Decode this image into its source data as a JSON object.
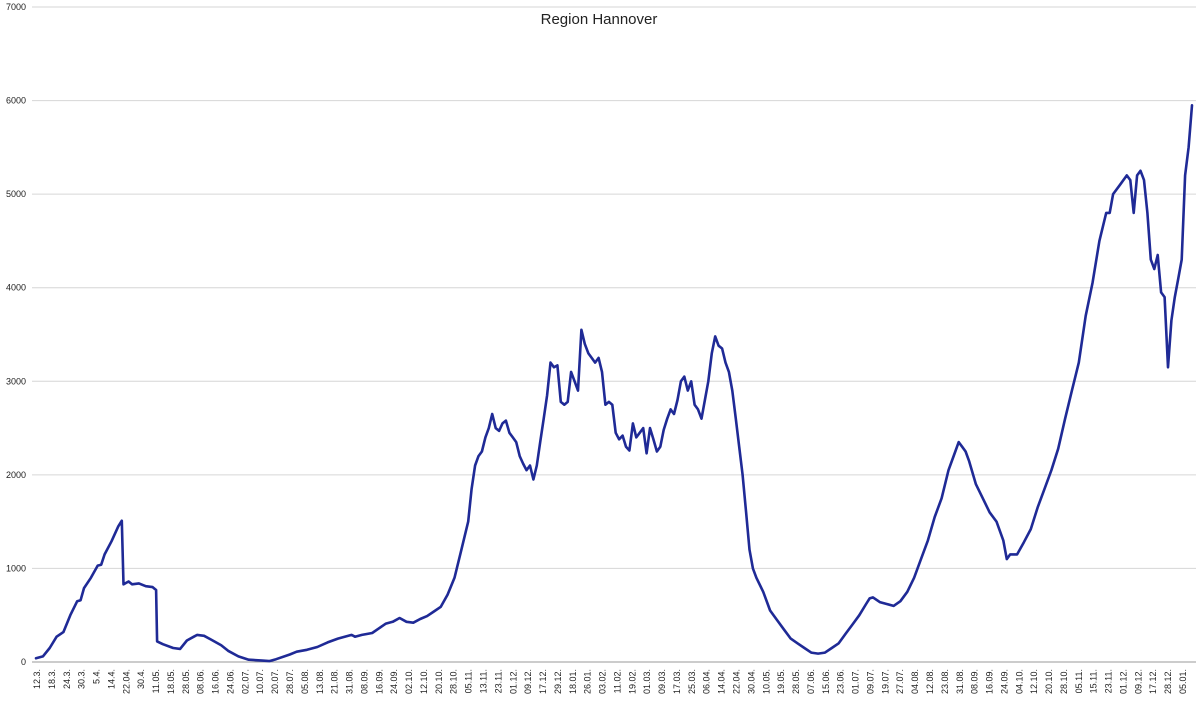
{
  "chart_data": {
    "type": "line",
    "title": "Region Hannover",
    "xlabel": "",
    "ylabel": "",
    "ylim": [
      0,
      7000
    ],
    "yticks": [
      0,
      1000,
      2000,
      3000,
      4000,
      5000,
      6000,
      7000
    ],
    "grid": true,
    "legend": "none",
    "xtick_labels": [
      "12.3.",
      "18.3.",
      "24.3.",
      "30.3.",
      "5.4.",
      "14.4.",
      "22.04.",
      "30.4.",
      "11.05.",
      "18.05.",
      "28.05.",
      "08.06.",
      "16.06.",
      "24.06.",
      "02.07.",
      "10.07.",
      "20.07.",
      "28.07.",
      "05.08.",
      "13.08.",
      "21.08.",
      "31.08.",
      "08.09.",
      "16.09.",
      "24.09.",
      "02.10.",
      "12.10.",
      "20.10.",
      "28.10.",
      "05.11.",
      "13.11.",
      "23.11.",
      "01.12.",
      "09.12.",
      "17.12.",
      "29.12.",
      "18.01.",
      "26.01.",
      "03.02.",
      "11.02.",
      "19.02.",
      "01.03.",
      "09.03.",
      "17.03.",
      "25.03.",
      "06.04.",
      "14.04.",
      "22.04.",
      "30.04.",
      "10.05.",
      "19.05.",
      "28.05.",
      "07.06.",
      "15.06.",
      "23.06.",
      "01.07.",
      "09.07.",
      "19.07.",
      "27.07.",
      "04.08.",
      "12.08.",
      "23.08.",
      "31.08.",
      "08.09.",
      "16.09.",
      "24.09.",
      "04.10.",
      "12.10.",
      "20.10.",
      "28.10.",
      "05.11.",
      "15.11.",
      "23.11.",
      "01.12.",
      "09.12.",
      "17.12.",
      "28.12.",
      "05.01."
    ],
    "series": [
      {
        "color": "#1f2a96",
        "points": [
          [
            0,
            40
          ],
          [
            2,
            60
          ],
          [
            4,
            150
          ],
          [
            6,
            270
          ],
          [
            8,
            320
          ],
          [
            10,
            500
          ],
          [
            12,
            650
          ],
          [
            13,
            660
          ],
          [
            14,
            790
          ],
          [
            16,
            900
          ],
          [
            18,
            1030
          ],
          [
            19,
            1040
          ],
          [
            20,
            1150
          ],
          [
            22,
            1290
          ],
          [
            24,
            1450
          ],
          [
            25,
            1510
          ],
          [
            25.5,
            830
          ],
          [
            27,
            860
          ],
          [
            28,
            830
          ],
          [
            30,
            840
          ],
          [
            32,
            810
          ],
          [
            34,
            800
          ],
          [
            35,
            770
          ],
          [
            35.3,
            220
          ],
          [
            37,
            190
          ],
          [
            40,
            150
          ],
          [
            42,
            140
          ],
          [
            44,
            230
          ],
          [
            46,
            270
          ],
          [
            47,
            290
          ],
          [
            49,
            280
          ],
          [
            51,
            240
          ],
          [
            54,
            180
          ],
          [
            56,
            120
          ],
          [
            59,
            60
          ],
          [
            62,
            25
          ],
          [
            66,
            15
          ],
          [
            68,
            10
          ],
          [
            70,
            30
          ],
          [
            74,
            80
          ],
          [
            76,
            110
          ],
          [
            79,
            130
          ],
          [
            82,
            160
          ],
          [
            85,
            210
          ],
          [
            88,
            250
          ],
          [
            90,
            270
          ],
          [
            92,
            290
          ],
          [
            93,
            270
          ],
          [
            95,
            290
          ],
          [
            98,
            310
          ],
          [
            100,
            360
          ],
          [
            102,
            410
          ],
          [
            104,
            430
          ],
          [
            106,
            470
          ],
          [
            108,
            430
          ],
          [
            110,
            420
          ],
          [
            112,
            460
          ],
          [
            114,
            490
          ],
          [
            116,
            540
          ],
          [
            118,
            590
          ],
          [
            120,
            720
          ],
          [
            122,
            900
          ],
          [
            124,
            1200
          ],
          [
            126,
            1500
          ],
          [
            127,
            1850
          ],
          [
            128,
            2100
          ],
          [
            129,
            2200
          ],
          [
            130,
            2250
          ],
          [
            131,
            2400
          ],
          [
            132,
            2500
          ],
          [
            133,
            2650
          ],
          [
            134,
            2500
          ],
          [
            135,
            2470
          ],
          [
            136,
            2550
          ],
          [
            137,
            2580
          ],
          [
            138,
            2450
          ],
          [
            139,
            2400
          ],
          [
            140,
            2350
          ],
          [
            141,
            2200
          ],
          [
            142,
            2120
          ],
          [
            143,
            2050
          ],
          [
            144,
            2100
          ],
          [
            145,
            1950
          ],
          [
            146,
            2100
          ],
          [
            147,
            2350
          ],
          [
            148,
            2600
          ],
          [
            149,
            2850
          ],
          [
            150,
            3200
          ],
          [
            151,
            3150
          ],
          [
            152,
            3170
          ],
          [
            153,
            2780
          ],
          [
            154,
            2750
          ],
          [
            155,
            2780
          ],
          [
            156,
            3100
          ],
          [
            157,
            3000
          ],
          [
            158,
            2900
          ],
          [
            159,
            3550
          ],
          [
            160,
            3400
          ],
          [
            161,
            3300
          ],
          [
            162,
            3250
          ],
          [
            163,
            3200
          ],
          [
            164,
            3250
          ],
          [
            165,
            3100
          ],
          [
            166,
            2750
          ],
          [
            167,
            2780
          ],
          [
            168,
            2750
          ],
          [
            169,
            2450
          ],
          [
            170,
            2380
          ],
          [
            171,
            2420
          ],
          [
            172,
            2300
          ],
          [
            173,
            2260
          ],
          [
            174,
            2550
          ],
          [
            175,
            2400
          ],
          [
            176,
            2450
          ],
          [
            177,
            2500
          ],
          [
            178,
            2230
          ],
          [
            179,
            2500
          ],
          [
            180,
            2380
          ],
          [
            181,
            2250
          ],
          [
            182,
            2300
          ],
          [
            183,
            2480
          ],
          [
            184,
            2600
          ],
          [
            185,
            2700
          ],
          [
            186,
            2650
          ],
          [
            187,
            2800
          ],
          [
            188,
            3000
          ],
          [
            189,
            3050
          ],
          [
            190,
            2900
          ],
          [
            191,
            3000
          ],
          [
            192,
            2750
          ],
          [
            193,
            2700
          ],
          [
            194,
            2600
          ],
          [
            195,
            2800
          ],
          [
            196,
            3000
          ],
          [
            197,
            3300
          ],
          [
            198,
            3480
          ],
          [
            199,
            3380
          ],
          [
            200,
            3350
          ],
          [
            201,
            3200
          ],
          [
            202,
            3100
          ],
          [
            203,
            2900
          ],
          [
            204,
            2600
          ],
          [
            205,
            2300
          ],
          [
            206,
            2000
          ],
          [
            207,
            1600
          ],
          [
            208,
            1200
          ],
          [
            209,
            1000
          ],
          [
            210,
            900
          ],
          [
            212,
            750
          ],
          [
            214,
            550
          ],
          [
            216,
            450
          ],
          [
            218,
            350
          ],
          [
            220,
            250
          ],
          [
            222,
            200
          ],
          [
            224,
            150
          ],
          [
            226,
            100
          ],
          [
            228,
            90
          ],
          [
            230,
            100
          ],
          [
            232,
            150
          ],
          [
            234,
            200
          ],
          [
            236,
            300
          ],
          [
            238,
            400
          ],
          [
            240,
            500
          ],
          [
            242,
            620
          ],
          [
            243,
            680
          ],
          [
            244,
            690
          ],
          [
            246,
            640
          ],
          [
            248,
            620
          ],
          [
            250,
            600
          ],
          [
            252,
            650
          ],
          [
            254,
            750
          ],
          [
            256,
            900
          ],
          [
            258,
            1100
          ],
          [
            260,
            1300
          ],
          [
            262,
            1550
          ],
          [
            264,
            1750
          ],
          [
            266,
            2050
          ],
          [
            268,
            2250
          ],
          [
            269,
            2350
          ],
          [
            270,
            2300
          ],
          [
            271,
            2250
          ],
          [
            272,
            2150
          ],
          [
            274,
            1900
          ],
          [
            276,
            1750
          ],
          [
            278,
            1600
          ],
          [
            280,
            1500
          ],
          [
            282,
            1300
          ],
          [
            283,
            1100
          ],
          [
            284,
            1150
          ],
          [
            286,
            1150
          ],
          [
            288,
            1280
          ],
          [
            290,
            1420
          ],
          [
            292,
            1650
          ],
          [
            294,
            1850
          ],
          [
            296,
            2050
          ],
          [
            298,
            2280
          ],
          [
            300,
            2600
          ],
          [
            302,
            2900
          ],
          [
            304,
            3200
          ],
          [
            306,
            3700
          ],
          [
            308,
            4050
          ],
          [
            310,
            4500
          ],
          [
            312,
            4800
          ],
          [
            313,
            4800
          ],
          [
            314,
            5000
          ],
          [
            316,
            5100
          ],
          [
            318,
            5200
          ],
          [
            319,
            5150
          ],
          [
            320,
            4800
          ],
          [
            321,
            5200
          ],
          [
            322,
            5250
          ],
          [
            323,
            5150
          ],
          [
            324,
            4800
          ],
          [
            325,
            4300
          ],
          [
            326,
            4200
          ],
          [
            327,
            4350
          ],
          [
            328,
            3950
          ],
          [
            329,
            3900
          ],
          [
            330,
            3150
          ],
          [
            331,
            3650
          ],
          [
            332,
            3900
          ],
          [
            333,
            4100
          ],
          [
            334,
            4300
          ],
          [
            335,
            5200
          ],
          [
            336,
            5500
          ],
          [
            337,
            5950
          ]
        ]
      }
    ]
  }
}
